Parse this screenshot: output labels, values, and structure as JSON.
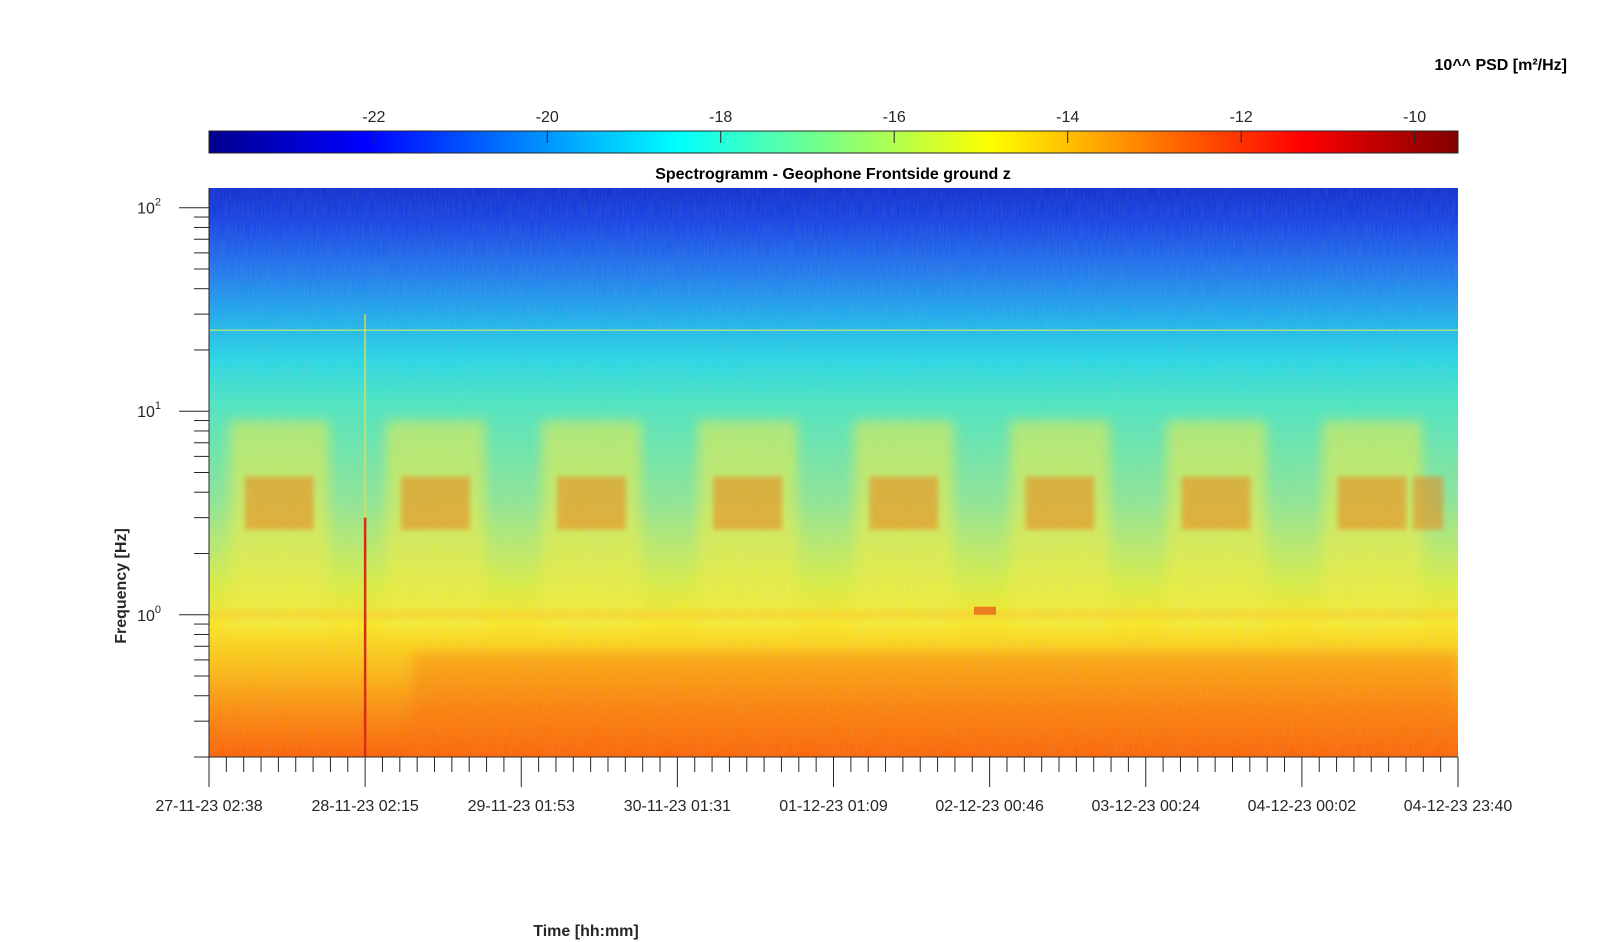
{
  "chart_data": {
    "type": "heatmap",
    "title": "Spectrogramm - Geophone Frontside ground z",
    "xlabel": "Time [hh:mm]",
    "ylabel": "Frequency [Hz]",
    "x_tick_labels": [
      "27-11-23 02:38",
      "28-11-23 02:15",
      "29-11-23 01:53",
      "30-11-23 01:31",
      "01-12-23 01:09",
      "02-12-23 00:46",
      "03-12-23 00:24",
      "04-12-23 00:02",
      "04-12-23 23:40"
    ],
    "y_scale": "log",
    "y_range_hz": [
      0.2,
      125
    ],
    "y_ticks": [
      {
        "value": 1,
        "base": "10",
        "exp": "0"
      },
      {
        "value": 10,
        "base": "10",
        "exp": "1"
      },
      {
        "value": 100,
        "base": "10",
        "exp": "2"
      }
    ],
    "colorbar": {
      "label": "10^^ PSD [m²/Hz]",
      "colormap": "jet",
      "range": [
        -23.9,
        -9.5
      ],
      "ticks": [
        -22,
        -20,
        -18,
        -16,
        -14,
        -12,
        -10
      ],
      "tick_labels": [
        "-22",
        "-20",
        "-18",
        "-16",
        "-14",
        "-12",
        "-10"
      ],
      "placement": "top"
    },
    "spectral_features": {
      "day_bursts_hz": [
        2.5,
        5
      ],
      "night_band_hz": 1.0,
      "spike_near_x": "28-11-23 02:15"
    }
  }
}
